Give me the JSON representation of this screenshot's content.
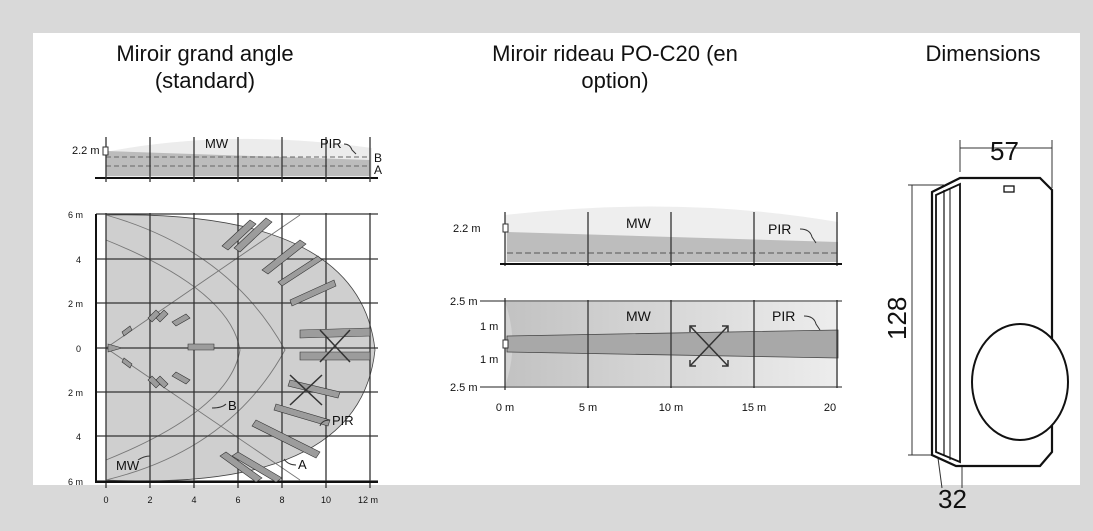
{
  "panels": {
    "wide": {
      "title": "Miroir grand angle (standard)",
      "side": {
        "height_label": "2.2 m",
        "mw": "MW",
        "pir": "PIR",
        "b": "B",
        "a": "A"
      },
      "top": {
        "y_labels": [
          "6 m",
          "4",
          "2 m",
          "0",
          "2 m",
          "4",
          "6 m"
        ],
        "x_labels": [
          "0",
          "2",
          "4",
          "6",
          "8",
          "10",
          "12 m"
        ],
        "b": "B",
        "pir": "PIR",
        "mw": "MW",
        "a": "A"
      }
    },
    "curtain": {
      "title": "Miroir rideau PO-C20 (en option)",
      "side": {
        "height_label": "2.2 m",
        "mw": "MW",
        "pir": "PIR"
      },
      "top": {
        "y_labels": [
          "2.5 m",
          "1 m",
          "1 m",
          "2.5 m"
        ],
        "x_labels": [
          "0 m",
          "5 m",
          "10 m",
          "15 m",
          "20"
        ],
        "mw": "MW",
        "pir": "PIR"
      }
    },
    "dimensions": {
      "title": "Dimensions",
      "width": "57",
      "height": "128",
      "depth": "32"
    }
  },
  "colors": {
    "background": "#d9d9d9",
    "panel": "#ffffff",
    "zone": "#c8c8c8",
    "beam": "#9a9a9a",
    "line": "#111111"
  }
}
